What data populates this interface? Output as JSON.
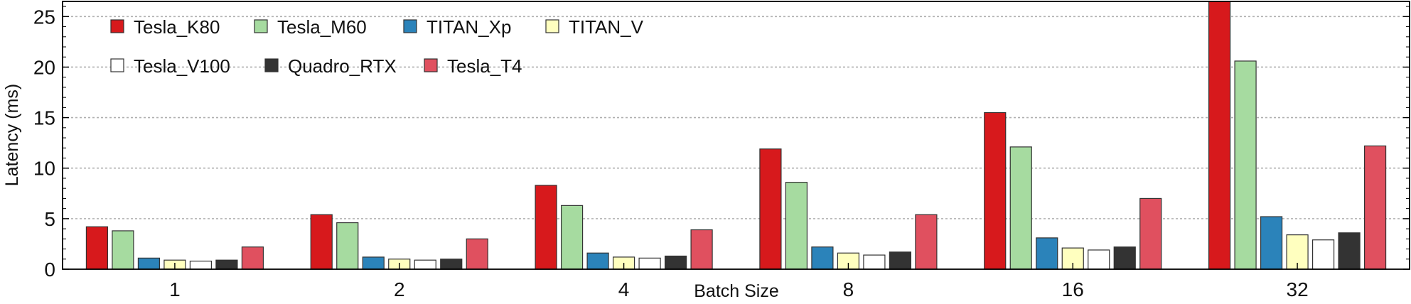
{
  "chart_data": {
    "type": "bar",
    "title": "",
    "xlabel": "Batch Size",
    "ylabel": "Latency (ms)",
    "categories": [
      "1",
      "2",
      "4",
      "8",
      "16",
      "32"
    ],
    "ylim": [
      0,
      26.5
    ],
    "yticks": [
      0,
      5,
      10,
      15,
      20,
      25
    ],
    "grid": true,
    "legend_position": "top-left",
    "series": [
      {
        "name": "Tesla_K80",
        "color": "#d7191c",
        "values": [
          4.2,
          5.4,
          8.3,
          11.9,
          15.5,
          26.5
        ]
      },
      {
        "name": "Tesla_M60",
        "color": "#a6dba0",
        "values": [
          3.8,
          4.6,
          6.3,
          8.6,
          12.1,
          20.6
        ]
      },
      {
        "name": "TITAN_Xp",
        "color": "#2b83ba",
        "values": [
          1.1,
          1.2,
          1.6,
          2.2,
          3.1,
          5.2
        ]
      },
      {
        "name": "TITAN_V",
        "color": "#ffffbf",
        "values": [
          0.9,
          1.0,
          1.2,
          1.6,
          2.1,
          3.4
        ]
      },
      {
        "name": "Tesla_V100",
        "color": "#ffffff",
        "values": [
          0.8,
          0.9,
          1.1,
          1.4,
          1.9,
          2.9
        ]
      },
      {
        "name": "Quadro_RTX",
        "color": "#333333",
        "values": [
          0.9,
          1.0,
          1.3,
          1.7,
          2.2,
          3.6
        ]
      },
      {
        "name": "Tesla_T4",
        "color": "#e0505f",
        "values": [
          2.2,
          3.0,
          3.9,
          5.4,
          7.0,
          12.2
        ]
      }
    ]
  }
}
